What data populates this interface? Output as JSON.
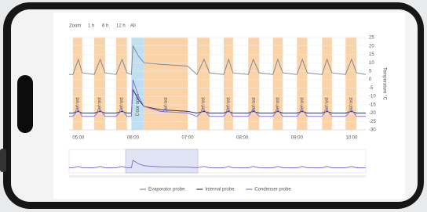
{
  "chart_data": {
    "type": "line",
    "zoom_label": "Zoom",
    "zoom_buttons": [
      "1 h",
      "6 h",
      "12 h",
      "All"
    ],
    "y_axis_label": "Temperature °C",
    "xlim": [
      4.83,
      10.26
    ],
    "xticks": [
      {
        "value": 5,
        "label": "05:00"
      },
      {
        "value": 6,
        "label": "06:00"
      },
      {
        "value": 7,
        "label": "07:00"
      },
      {
        "value": 8,
        "label": "08:00"
      },
      {
        "value": 9,
        "label": "09:00"
      },
      {
        "value": 10,
        "label": "10:00"
      }
    ],
    "ylim": [
      -30,
      25
    ],
    "yticks": [
      -30,
      -25,
      -20,
      -15,
      -10,
      -5,
      0,
      5,
      10,
      15,
      20,
      25
    ],
    "bands": [
      {
        "from": 4.9,
        "to": 5.07,
        "label": "Defrost",
        "color": "#fbd3a8"
      },
      {
        "from": 5.29,
        "to": 5.49,
        "label": "Defrost",
        "color": "#fbd3a8"
      },
      {
        "from": 5.69,
        "to": 5.89,
        "label": "Defrost",
        "color": "#fbd3a8"
      },
      {
        "from": 5.97,
        "to": 6.2,
        "label": "Door open",
        "color": "#bfe0f2"
      },
      {
        "from": 6.2,
        "to": 7.0,
        "label": "Defrost",
        "color": "#fbd3a8"
      },
      {
        "from": 7.17,
        "to": 7.4,
        "label": "Defrost",
        "color": "#fbd3a8"
      },
      {
        "from": 7.66,
        "to": 7.83,
        "label": "Defrost",
        "color": "#fbd3a8"
      },
      {
        "from": 8.11,
        "to": 8.31,
        "label": "Defrost",
        "color": "#fbd3a8"
      },
      {
        "from": 8.56,
        "to": 8.74,
        "label": "Defrost",
        "color": "#fbd3a8"
      },
      {
        "from": 9.0,
        "to": 9.19,
        "label": "Defrost",
        "color": "#fbd3a8"
      },
      {
        "from": 9.46,
        "to": 9.64,
        "label": "Defrost",
        "color": "#fbd3a8"
      },
      {
        "from": 9.89,
        "to": 10.09,
        "label": "Defrost",
        "color": "#fbd3a8"
      }
    ],
    "x": [
      4.83,
      4.9,
      5.0,
      5.07,
      5.29,
      5.4,
      5.49,
      5.69,
      5.8,
      5.89,
      5.97,
      6.0,
      6.1,
      6.2,
      6.5,
      7.0,
      7.17,
      7.3,
      7.4,
      7.66,
      7.75,
      7.83,
      8.11,
      8.2,
      8.31,
      8.56,
      8.65,
      8.74,
      9.0,
      9.1,
      9.19,
      9.46,
      9.55,
      9.64,
      9.89,
      10.0,
      10.09,
      10.26
    ],
    "series": [
      {
        "name": "Evaporator probe",
        "color": "#8a8a8a",
        "values": [
          3,
          3,
          12,
          4,
          3,
          12,
          4,
          3,
          12,
          4,
          3,
          20,
          14,
          10,
          9,
          8,
          3,
          12,
          4,
          3,
          12,
          4,
          3,
          12,
          4,
          3,
          12,
          4,
          3,
          12,
          4,
          3,
          12,
          4,
          3,
          12,
          4,
          3
        ]
      },
      {
        "name": "Internal probe",
        "color": "#2b3a67",
        "values": [
          -20,
          -20,
          -19,
          -20,
          -20,
          -19,
          -20,
          -20,
          -19,
          -20,
          -20,
          -6,
          -12,
          -16,
          -18,
          -19,
          -20,
          -19,
          -20,
          -20,
          -19,
          -20,
          -20,
          -19,
          -20,
          -20,
          -19,
          -20,
          -20,
          -19,
          -20,
          -20,
          -19,
          -20,
          -20,
          -19,
          -20,
          -20
        ]
      },
      {
        "name": "Condenser probe",
        "color": "#8b6fd6",
        "values": [
          -22,
          -22,
          -18,
          -22,
          -22,
          -18,
          -22,
          -22,
          -18,
          -22,
          -22,
          0,
          -10,
          -16,
          -19,
          -20,
          -22,
          -18,
          -22,
          -22,
          -18,
          -22,
          -22,
          -18,
          -22,
          -22,
          -18,
          -22,
          -22,
          -18,
          -22,
          -22,
          -18,
          -22,
          -22,
          -18,
          -22,
          -22
        ]
      }
    ]
  }
}
